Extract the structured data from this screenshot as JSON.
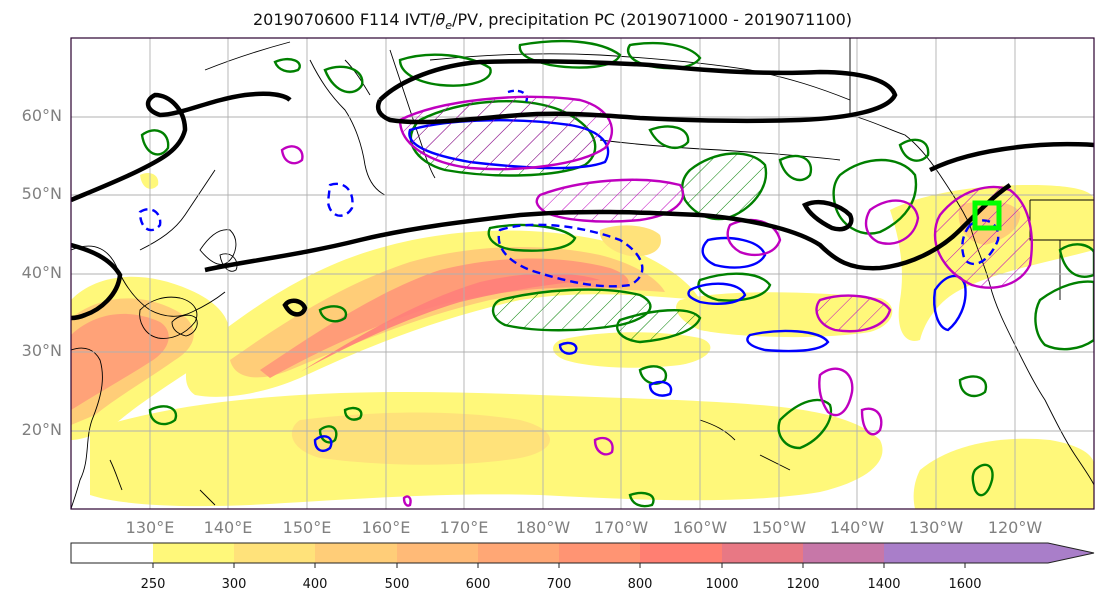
{
  "title": "2019070600 F114 IVT/θe/PV, precipitation PC (2019071000 - 2019071100)",
  "title_parts": {
    "prefix": "2019070600 F114 IVT/",
    "theta": "θ",
    "sub": "e",
    "suffix": "/PV, precipitation PC (2019071000 - 2019071100)"
  },
  "latitude_labels": [
    "60°N",
    "50°N",
    "40°N",
    "30°N",
    "20°N"
  ],
  "longitude_labels": [
    "130°E",
    "140°E",
    "150°E",
    "160°E",
    "170°E",
    "180°W",
    "170°W",
    "160°W",
    "150°W",
    "140°W",
    "130°W",
    "120°W"
  ],
  "colorbar": {
    "ticks": [
      "250",
      "300",
      "400",
      "500",
      "600",
      "700",
      "800",
      "1000",
      "1200",
      "1400",
      "1600"
    ],
    "colors": [
      "#ffffff",
      "#fff87a",
      "#ffe27a",
      "#ffcd78",
      "#ffba77",
      "#ffa775",
      "#ff9473",
      "#ff7f72",
      "#e87884",
      "#c777a8",
      "#a97ec9"
    ],
    "extend": "max"
  },
  "colors": {
    "ivt_light": "#fff87a",
    "ivt_mid": "#ffcd78",
    "ivt_high": "#ff8a78",
    "pv_contour": "#000000",
    "positive_anomaly": "#008000",
    "negative_anomaly": "#0000ff",
    "theta_e": "#bf00bf",
    "highlight_box": "#00ff00",
    "grid": "#b0b0b0",
    "label_gray": "#808080"
  }
}
